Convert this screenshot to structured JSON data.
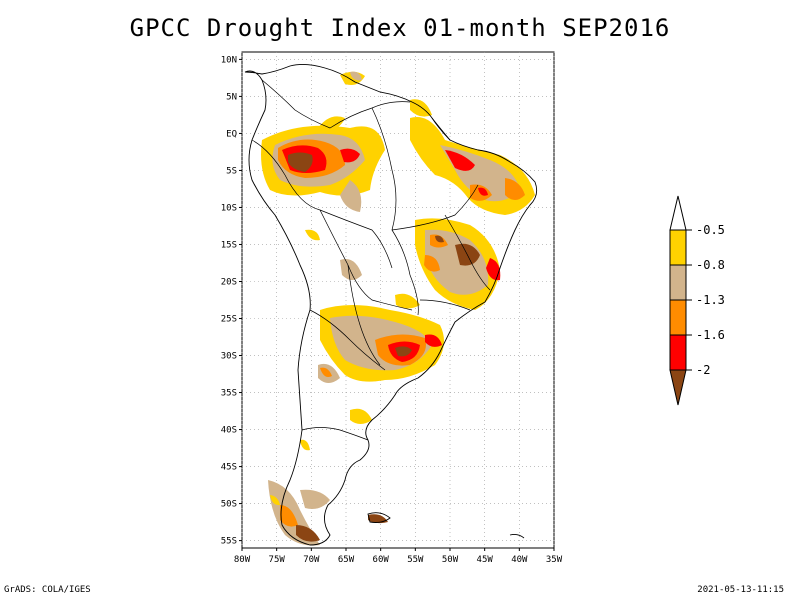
{
  "title": "GPCC Drought Index 01-month SEP2016",
  "footer": {
    "left": "GrADS: COLA/IGES",
    "right": "2021-05-13-11:15"
  },
  "map": {
    "lon_range": [
      -80,
      -35
    ],
    "lat_range": [
      -56,
      11
    ],
    "lat_ticks": [
      "10N",
      "5N",
      "EQ",
      "5S",
      "10S",
      "15S",
      "20S",
      "25S",
      "30S",
      "35S",
      "40S",
      "45S",
      "50S",
      "55S"
    ],
    "lon_ticks": [
      "80W",
      "75W",
      "70W",
      "65W",
      "60W",
      "55W",
      "50W",
      "45W",
      "40W",
      "35W"
    ]
  },
  "colors": {
    "c05": "#ffd200",
    "c08": "#d2b48c",
    "c13": "#ff8c00",
    "c16": "#ff0000",
    "c2": "#8b4513",
    "land": "#ffffff",
    "outline": "#000000"
  },
  "legend": {
    "labels": [
      "-0.5",
      "-0.8",
      "-1.3",
      "-1.6",
      "-2"
    ]
  }
}
